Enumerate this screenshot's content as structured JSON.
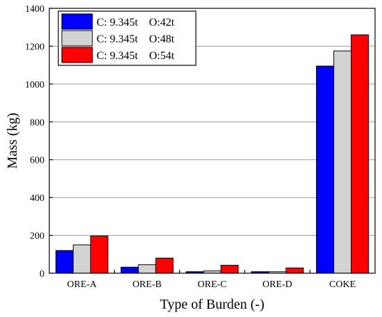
{
  "chart_data": {
    "type": "bar",
    "xlabel": "Type of Burden (-)",
    "ylabel": "Mass (kg)",
    "categories": [
      "ORE-A",
      "ORE-B",
      "ORE-C",
      "ORE-D",
      "COKE"
    ],
    "ylim": [
      0,
      1400
    ],
    "yticks": [
      0,
      200,
      400,
      600,
      800,
      1000,
      1200,
      1400
    ],
    "grid": true,
    "legend_position": "top-left",
    "series": [
      {
        "name": "C: 9.345t    O:42t",
        "color": "#0000ff",
        "values": [
          120,
          32,
          8,
          8,
          1095
        ]
      },
      {
        "name": "C: 9.345t    O:48t",
        "color": "#d3d3d3",
        "values": [
          150,
          45,
          12,
          8,
          1175
        ]
      },
      {
        "name": "C: 9.345t    O:54t",
        "color": "#ff0000",
        "values": [
          197,
          80,
          42,
          28,
          1260
        ]
      }
    ]
  }
}
